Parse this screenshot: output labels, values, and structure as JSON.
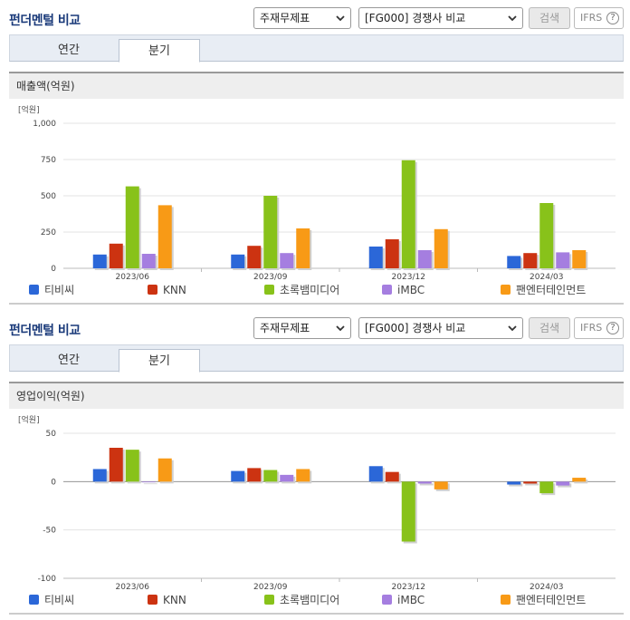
{
  "panels": [
    {
      "title": "펀더멘털 비교",
      "select_kind": "주재무제표",
      "select_company": "[FG000] 경쟁사 비교",
      "search_label": "검색",
      "ifrs_label": "IFRS",
      "help_label": "?",
      "tabs": [
        {
          "label": "연간"
        },
        {
          "label": "분기"
        }
      ],
      "active_tab": "분기",
      "section_title": "매출액(억원)"
    },
    {
      "title": "펀더멘털 비교",
      "select_kind": "주재무제표",
      "select_company": "[FG000] 경쟁사 비교",
      "search_label": "검색",
      "ifrs_label": "IFRS",
      "help_label": "?",
      "tabs": [
        {
          "label": "연간"
        },
        {
          "label": "분기"
        }
      ],
      "active_tab": "분기",
      "section_title": "영업이익(억원)"
    }
  ],
  "colors": {
    "티비씨": "#2b67d8",
    "KNN": "#cc3311",
    "초록뱀미디어": "#88c21a",
    "iMBC": "#a57ee0",
    "팬엔터테인먼트": "#f89a16"
  },
  "chart_data": [
    {
      "type": "bar",
      "unit_label": "[억원]",
      "categories": [
        "2023/06",
        "2023/09",
        "2023/12",
        "2024/03"
      ],
      "ylim": [
        0,
        1000
      ],
      "yticks": [
        0,
        250,
        500,
        750,
        1000
      ],
      "ytick_labels": [
        "0",
        "250",
        "500",
        "750",
        "1,000"
      ],
      "series": [
        {
          "name": "티비씨",
          "values": [
            95,
            95,
            150,
            85
          ]
        },
        {
          "name": "KNN",
          "values": [
            170,
            155,
            200,
            105
          ]
        },
        {
          "name": "초록뱀미디어",
          "values": [
            565,
            500,
            745,
            450
          ]
        },
        {
          "name": "iMBC",
          "values": [
            100,
            105,
            125,
            110
          ]
        },
        {
          "name": "팬엔터테인먼트",
          "values": [
            435,
            275,
            270,
            125
          ]
        }
      ]
    },
    {
      "type": "bar",
      "unit_label": "[억원]",
      "categories": [
        "2023/06",
        "2023/09",
        "2023/12",
        "2024/03"
      ],
      "ylim": [
        -100,
        50
      ],
      "yticks": [
        -100,
        -50,
        0,
        50
      ],
      "ytick_labels": [
        "-100",
        "-50",
        "0",
        "50"
      ],
      "series": [
        {
          "name": "티비씨",
          "values": [
            13,
            11,
            16,
            -3
          ]
        },
        {
          "name": "KNN",
          "values": [
            35,
            14,
            10,
            -2
          ]
        },
        {
          "name": "초록뱀미디어",
          "values": [
            33,
            12,
            -62,
            -12
          ]
        },
        {
          "name": "iMBC",
          "values": [
            0,
            7,
            -2,
            -4
          ]
        },
        {
          "name": "팬엔터테인먼트",
          "values": [
            24,
            13,
            -8,
            4
          ]
        }
      ]
    }
  ]
}
